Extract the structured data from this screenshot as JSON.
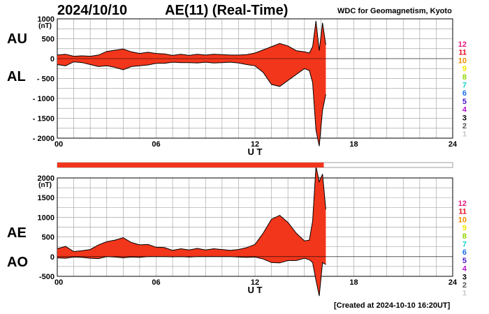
{
  "header": {
    "date": "2024/10/10",
    "index_title": "AE(11) (Real-Time)",
    "source": "WDC for Geomagnetism, Kyoto",
    "created": "[Created at 2024-10-10 16:20UT]"
  },
  "colors": {
    "fill": "#f2361b",
    "line": "#000000",
    "grid": "#a8a8a8",
    "progress_bar": "#f2361b"
  },
  "progress": {
    "fraction": 0.674
  },
  "station_legend": [
    {
      "label": "12",
      "color": "#e8197d"
    },
    {
      "label": "11",
      "color": "#e8101e"
    },
    {
      "label": "10",
      "color": "#f08c00"
    },
    {
      "label": "9",
      "color": "#f2e600"
    },
    {
      "label": "8",
      "color": "#8fd400"
    },
    {
      "label": "7",
      "color": "#14d2cc"
    },
    {
      "label": "6",
      "color": "#1670e8"
    },
    {
      "label": "5",
      "color": "#4a14c8"
    },
    {
      "label": "4",
      "color": "#b414d2"
    },
    {
      "label": "3",
      "color": "#000000"
    },
    {
      "label": "2",
      "color": "#555555"
    },
    {
      "label": "1",
      "color": "#c8c8c8"
    }
  ],
  "chart_data": [
    {
      "type": "area",
      "series": [
        {
          "name": "AU"
        },
        {
          "name": "AL"
        }
      ],
      "series_labels": [
        "AU",
        "AL"
      ],
      "xlabel": "U T",
      "ylabel": "(nT)",
      "xlim": [
        0,
        24
      ],
      "ylim": [
        -2000,
        1000
      ],
      "x_ticks": [
        "00",
        "06",
        "12",
        "18",
        "24"
      ],
      "y_ticks": [
        "1000",
        "500",
        "0",
        "- 500",
        "- 1000",
        "- 1500",
        "- 2000"
      ],
      "x": [
        0,
        0.5,
        1,
        1.5,
        2,
        2.5,
        3,
        3.5,
        4,
        4.5,
        5,
        5.5,
        6,
        6.5,
        7,
        7.5,
        8,
        8.5,
        9,
        9.5,
        10,
        10.5,
        11,
        11.5,
        12,
        12.5,
        13,
        13.5,
        14,
        14.5,
        15,
        15.3,
        15.5,
        15.7,
        15.9,
        16.1,
        16.3
      ],
      "upper": [
        90,
        110,
        60,
        70,
        60,
        90,
        180,
        210,
        240,
        170,
        130,
        160,
        130,
        120,
        80,
        110,
        80,
        110,
        90,
        110,
        100,
        90,
        90,
        100,
        140,
        220,
        300,
        380,
        320,
        200,
        170,
        140,
        300,
        950,
        200,
        900,
        350
      ],
      "lower": [
        -150,
        -180,
        -80,
        -100,
        -150,
        -200,
        -180,
        -220,
        -280,
        -200,
        -180,
        -160,
        -120,
        -120,
        -90,
        -100,
        -100,
        -110,
        -90,
        -110,
        -100,
        -90,
        -110,
        -150,
        -180,
        -350,
        -650,
        -700,
        -550,
        -400,
        -250,
        -300,
        -600,
        -1800,
        -2200,
        -1300,
        -900
      ]
    },
    {
      "type": "area",
      "series": [
        {
          "name": "AE"
        },
        {
          "name": "AO"
        }
      ],
      "series_labels": [
        "AE",
        "AO"
      ],
      "xlabel": "U T",
      "ylabel": "(nT)",
      "xlim": [
        0,
        24
      ],
      "ylim": [
        -500,
        2000
      ],
      "x_ticks": [
        "00",
        "06",
        "12",
        "18",
        "24"
      ],
      "y_ticks": [
        "2000",
        "1500",
        "1000",
        "500",
        "0",
        "-500"
      ],
      "x": [
        0,
        0.5,
        1,
        1.5,
        2,
        2.5,
        3,
        3.5,
        4,
        4.5,
        5,
        5.5,
        6,
        6.5,
        7,
        7.5,
        8,
        8.5,
        9,
        9.5,
        10,
        10.5,
        11,
        11.5,
        12,
        12.5,
        13,
        13.5,
        14,
        14.5,
        15,
        15.3,
        15.5,
        15.7,
        15.9,
        16.1,
        16.3
      ],
      "upper": [
        200,
        260,
        130,
        150,
        180,
        300,
        380,
        420,
        480,
        360,
        300,
        310,
        240,
        230,
        160,
        200,
        170,
        210,
        170,
        200,
        180,
        160,
        180,
        230,
        310,
        600,
        950,
        1050,
        870,
        600,
        400,
        420,
        900,
        2300,
        1900,
        2100,
        1200
      ],
      "lower": [
        -30,
        -40,
        -10,
        -20,
        -40,
        -50,
        0,
        -10,
        -30,
        -10,
        -20,
        0,
        0,
        0,
        -5,
        0,
        -10,
        0,
        0,
        0,
        0,
        0,
        -10,
        -20,
        -10,
        -60,
        -150,
        -160,
        -100,
        -100,
        -40,
        -80,
        -150,
        -600,
        -1000,
        -150,
        -200
      ]
    }
  ]
}
